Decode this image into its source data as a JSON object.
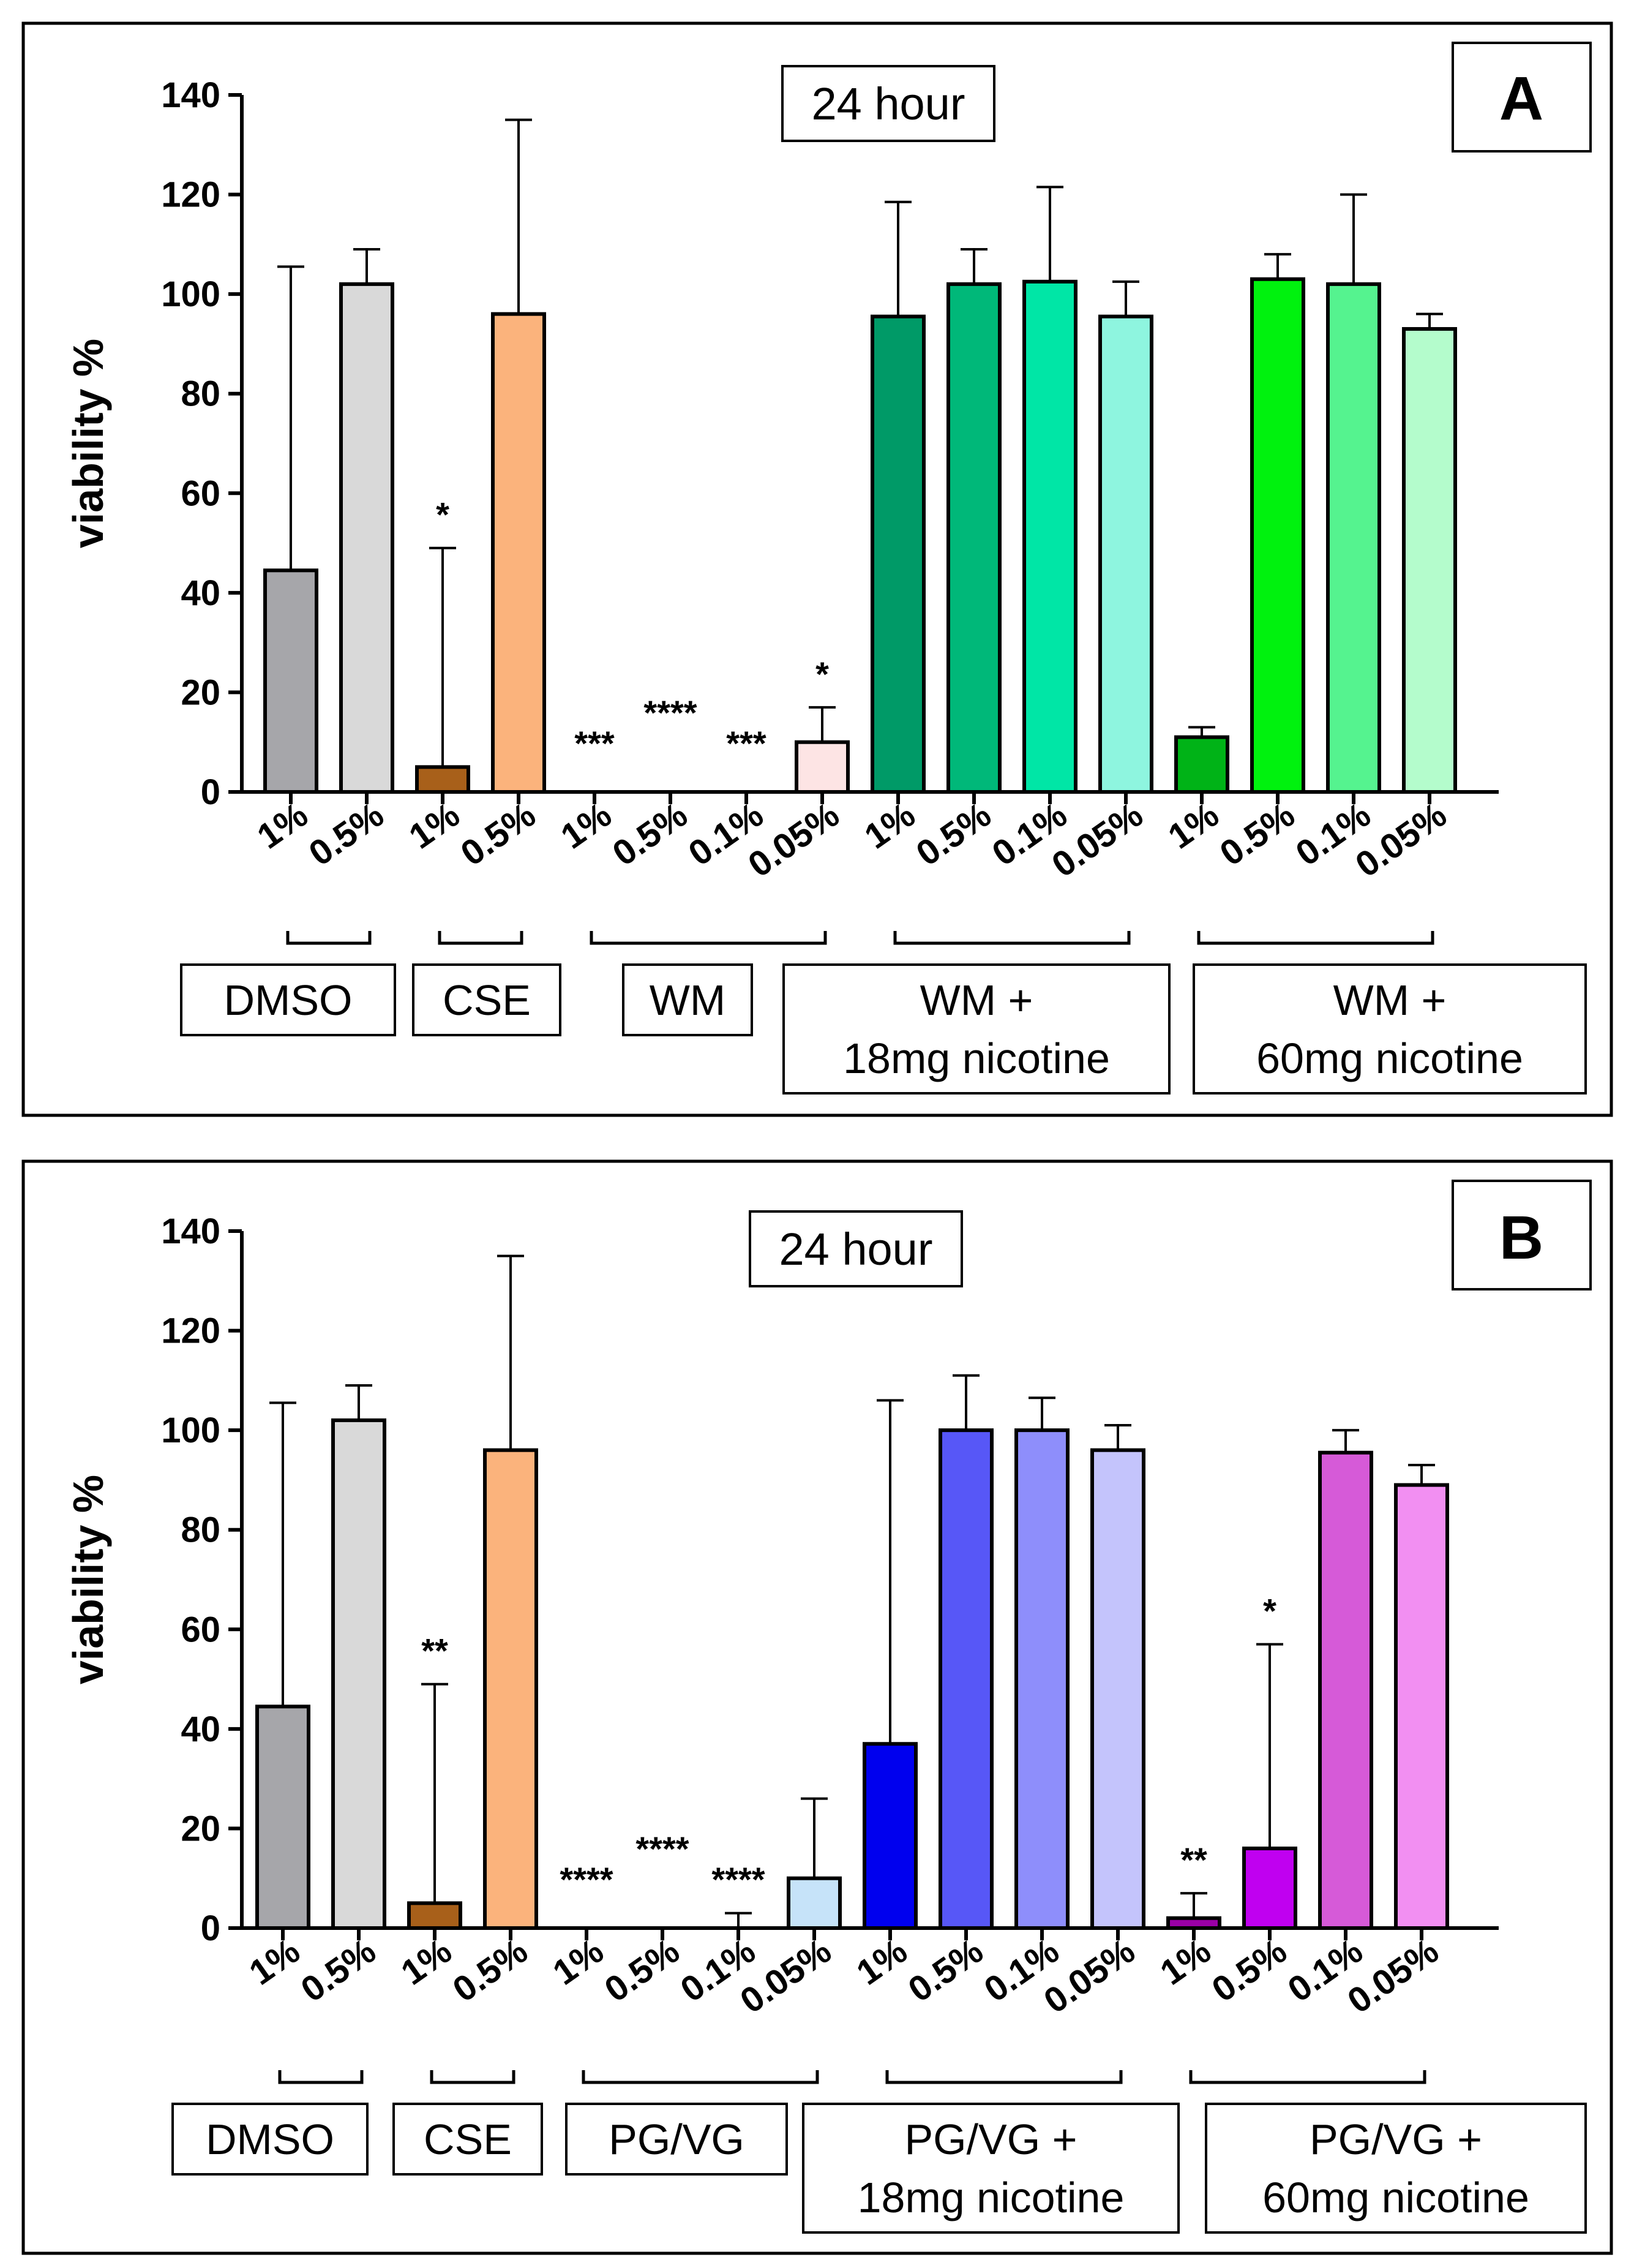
{
  "chart_data": [
    {
      "type": "bar",
      "panel": "A",
      "title": "24 hour",
      "ylabel": "viability %",
      "ylim": [
        0,
        140
      ],
      "yticks": [
        0,
        20,
        40,
        60,
        80,
        100,
        120,
        140
      ],
      "categories": [
        "1%",
        "0.5%",
        "1%",
        "0.5%",
        "1%",
        "0.5%",
        "0.1%",
        "0.05%",
        "1%",
        "0.5%",
        "0.1%",
        "0.05%",
        "1%",
        "0.5%",
        "0.1%",
        "0.05%"
      ],
      "values": [
        44.5,
        102,
        5,
        96,
        0,
        0,
        0,
        10,
        95.5,
        102,
        102.5,
        95.5,
        11,
        103,
        102,
        93
      ],
      "errors": [
        61,
        7,
        44,
        39,
        0,
        0,
        0,
        7,
        23,
        7,
        19,
        7,
        2,
        5,
        18,
        3
      ],
      "colors": [
        "#a6a6aa",
        "#d9d9d9",
        "#a8601a",
        "#fbb37c",
        "#ffffff",
        "#ffffff",
        "#ffffff",
        "#fde4e4",
        "#009a67",
        "#00b879",
        "#00e6a6",
        "#8ef5df",
        "#00b317",
        "#00f20e",
        "#55f38f",
        "#b4fccc"
      ],
      "significance": [
        "",
        "",
        "*",
        "",
        "***",
        "****",
        "***",
        "*",
        "",
        "",
        "",
        "",
        "",
        "",
        "",
        ""
      ],
      "groups": [
        {
          "name": "DMSO",
          "lines": [
            "DMSO"
          ],
          "start": 0,
          "end": 1
        },
        {
          "name": "CSE",
          "lines": [
            "CSE"
          ],
          "start": 2,
          "end": 3
        },
        {
          "name": "WM",
          "lines": [
            "WM"
          ],
          "start": 4,
          "end": 7
        },
        {
          "name": "WM + 18mg nicotine",
          "lines": [
            "WM +",
            "18mg nicotine"
          ],
          "start": 8,
          "end": 11
        },
        {
          "name": "WM + 60mg nicotine",
          "lines": [
            "WM +",
            "60mg nicotine"
          ],
          "start": 12,
          "end": 15
        }
      ]
    },
    {
      "type": "bar",
      "panel": "B",
      "title": "24 hour",
      "ylabel": "viability %",
      "ylim": [
        0,
        140
      ],
      "yticks": [
        0,
        20,
        40,
        60,
        80,
        100,
        120,
        140
      ],
      "categories": [
        "1%",
        "0.5%",
        "1%",
        "0.5%",
        "1%",
        "0.5%",
        "0.1%",
        "0.05%",
        "1%",
        "0.5%",
        "0.1%",
        "0.05%",
        "1%",
        "0.5%",
        "0.1%",
        "0.05%"
      ],
      "values": [
        44.5,
        102,
        5,
        96,
        0,
        0,
        0,
        10,
        37,
        100,
        100,
        96,
        2,
        16,
        95.5,
        89
      ],
      "errors": [
        61,
        7,
        44,
        39,
        0,
        0,
        3,
        16,
        69,
        11,
        6.5,
        5,
        5,
        41,
        4.5,
        4
      ],
      "colors": [
        "#a6a6aa",
        "#d9d9d9",
        "#a8601a",
        "#fbb37c",
        "#ffffff",
        "#ffffff",
        "#ffffff",
        "#c6e3f9",
        "#0000ee",
        "#5757f7",
        "#8e8efb",
        "#c4c4fc",
        "#9a00a6",
        "#c000f0",
        "#d65ad8",
        "#f28ff2"
      ],
      "significance": [
        "",
        "",
        "**",
        "",
        "****",
        "****",
        "****",
        "",
        "",
        "",
        "",
        "",
        "**",
        "*",
        "",
        ""
      ],
      "groups": [
        {
          "name": "DMSO",
          "lines": [
            "DMSO"
          ],
          "start": 0,
          "end": 1
        },
        {
          "name": "CSE",
          "lines": [
            "CSE"
          ],
          "start": 2,
          "end": 3
        },
        {
          "name": "PG/VG",
          "lines": [
            "PG/VG"
          ],
          "start": 4,
          "end": 7
        },
        {
          "name": "PG/VG + 18mg nicotine",
          "lines": [
            "PG/VG +",
            "18mg nicotine"
          ],
          "start": 8,
          "end": 11
        },
        {
          "name": "PG/VG + 60mg nicotine",
          "lines": [
            "PG/VG +",
            "60mg nicotine"
          ],
          "start": 12,
          "end": 15
        }
      ]
    }
  ]
}
